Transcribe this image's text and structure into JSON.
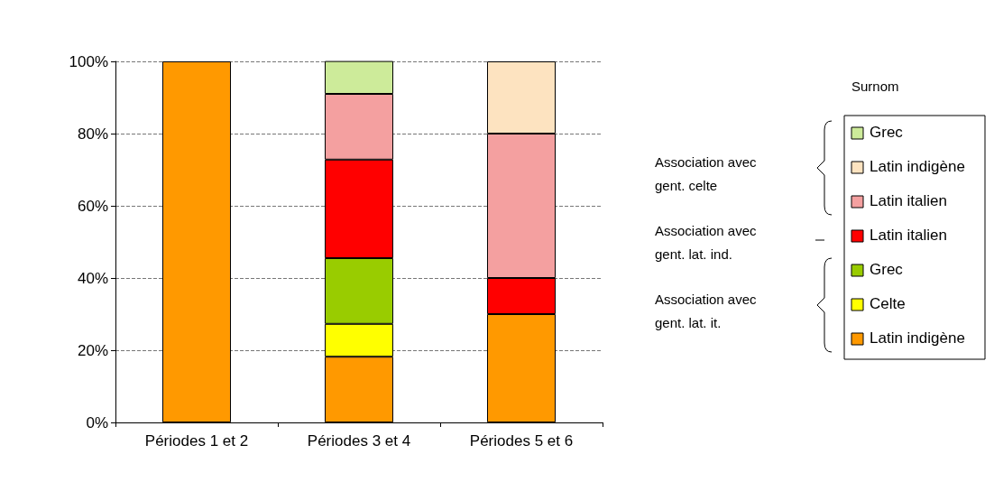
{
  "chart_data": {
    "type": "bar",
    "stacked": true,
    "categories": [
      "Périodes 1 et 2",
      "Périodes 3 et 4",
      "Périodes 5 et 6"
    ],
    "series": [
      {
        "name": "Latin indigène",
        "color": "#ff9900",
        "values": [
          100,
          18.2,
          30
        ]
      },
      {
        "name": "Celte",
        "color": "#ffff00",
        "values": [
          0,
          9.1,
          0
        ]
      },
      {
        "name": "Grec",
        "color": "#99cc00",
        "values": [
          0,
          18.2,
          0
        ]
      },
      {
        "name": "Latin italien",
        "color": "#ff0000",
        "values": [
          0,
          27.3,
          10
        ]
      },
      {
        "name": "Latin italien",
        "color": "#f4a0a0",
        "values": [
          0,
          18.2,
          40
        ]
      },
      {
        "name": "Latin indigène",
        "color": "#fde3c0",
        "values": [
          0,
          0,
          20
        ]
      },
      {
        "name": "Grec",
        "color": "#cdeb9a",
        "values": [
          0,
          9.1,
          0
        ]
      }
    ],
    "ylim": [
      0,
      100
    ],
    "yticks": [
      {
        "value": 0,
        "label": "0%"
      },
      {
        "value": 20,
        "label": "20%"
      },
      {
        "value": 40,
        "label": "40%"
      },
      {
        "value": 60,
        "label": "60%"
      },
      {
        "value": 80,
        "label": "80%"
      },
      {
        "value": 100,
        "label": "100%"
      }
    ],
    "grid": "y",
    "legend": "right",
    "legend_title": "Surnom",
    "annotations": [
      "Association avec gent. celte",
      "Association avec gent. lat. ind.",
      "Association avec gent. lat. it."
    ]
  }
}
